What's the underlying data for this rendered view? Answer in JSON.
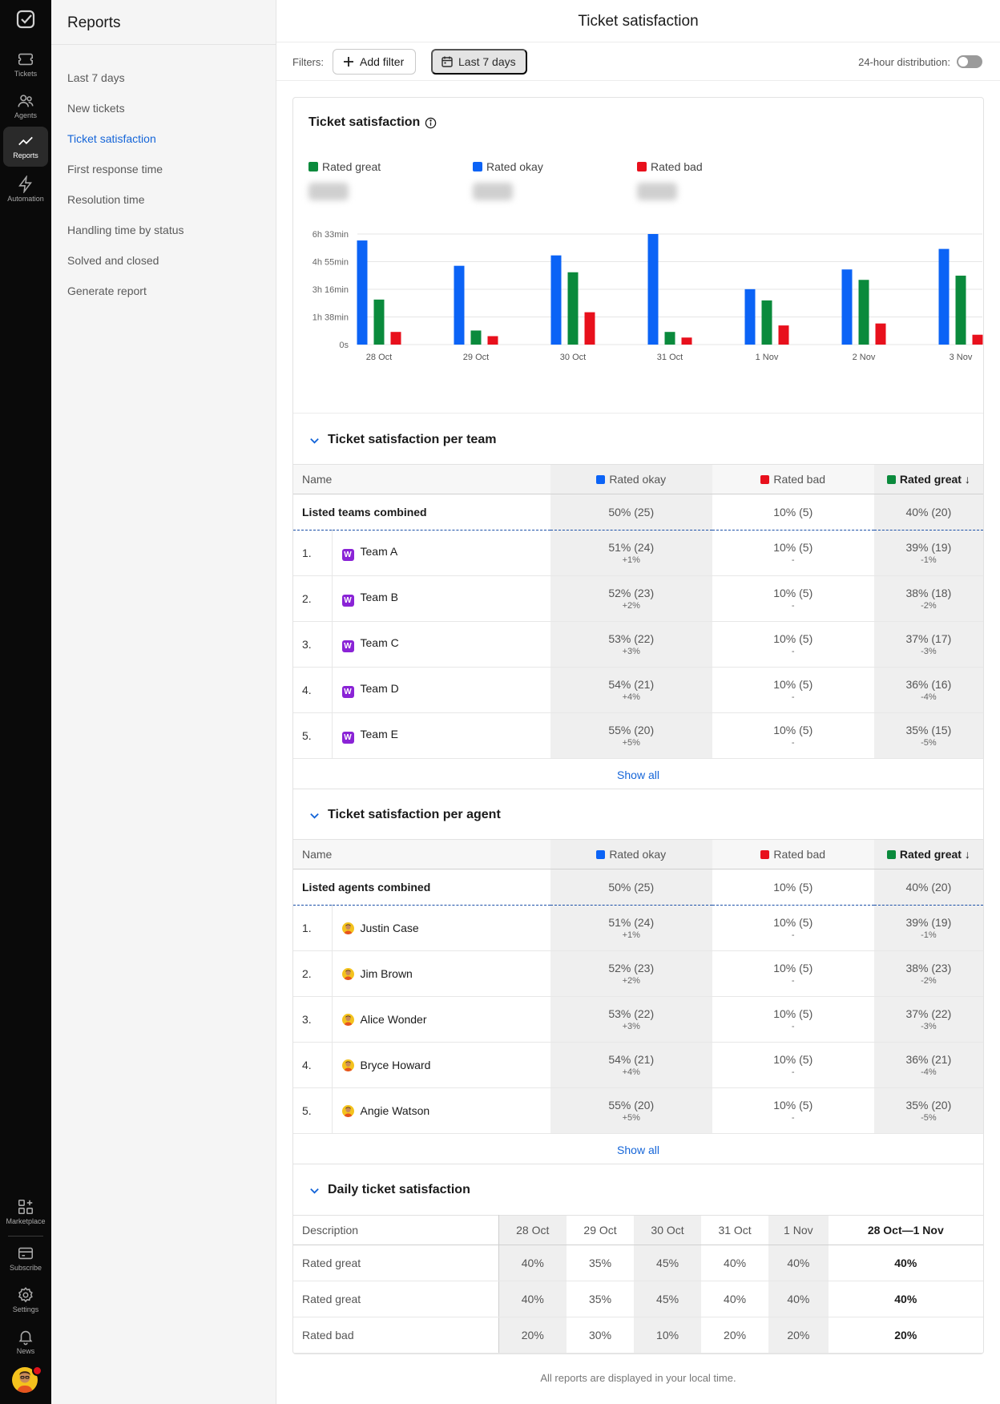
{
  "rail": {
    "items": [
      {
        "label": "Tickets",
        "icon": "ticket-icon"
      },
      {
        "label": "Agents",
        "icon": "agents-icon"
      },
      {
        "label": "Reports",
        "icon": "reports-icon"
      },
      {
        "label": "Automation",
        "icon": "bolt-icon"
      }
    ],
    "bottom_items": [
      {
        "label": "Marketplace",
        "icon": "marketplace-icon"
      },
      {
        "label": "Subscribe",
        "icon": "card-icon"
      },
      {
        "label": "Settings",
        "icon": "gear-icon"
      },
      {
        "label": "News",
        "icon": "bell-icon"
      }
    ]
  },
  "sidebar": {
    "title": "Reports",
    "items": [
      {
        "label": "Last 7 days"
      },
      {
        "label": "New tickets"
      },
      {
        "label": "Ticket satisfaction"
      },
      {
        "label": "First response time"
      },
      {
        "label": "Resolution time"
      },
      {
        "label": "Handling time by status"
      },
      {
        "label": "Solved and closed"
      },
      {
        "label": "Generate report"
      }
    ],
    "active_index": 2
  },
  "header": {
    "title": "Ticket satisfaction"
  },
  "filters": {
    "label": "Filters:",
    "add_filter": "Add filter",
    "date_range": "Last 7 days",
    "distribution_label": "24-hour distribution:",
    "distribution_on": false
  },
  "colors": {
    "great": "#0a8a3c",
    "okay": "#0b63f6",
    "bad": "#e8101c",
    "link": "#1565d8"
  },
  "card": {
    "title": "Ticket satisfaction"
  },
  "legend": [
    {
      "name": "Rated great",
      "color": "#0a8a3c"
    },
    {
      "name": "Rated okay",
      "color": "#0b63f6"
    },
    {
      "name": "Rated bad",
      "color": "#e8101c"
    }
  ],
  "chart_data": {
    "type": "bar",
    "categories": [
      "28 Oct",
      "29 Oct",
      "30 Oct",
      "31 Oct",
      "1 Nov",
      "2 Nov",
      "3 Nov"
    ],
    "y_ticks": [
      "0s",
      "1h 38min",
      "3h 16min",
      "4h 55min",
      "6h 33min"
    ],
    "ylim_minutes": [
      0,
      393
    ],
    "series": [
      {
        "name": "Rated okay",
        "color": "#0b63f6",
        "values_minutes": [
          370,
          280,
          317,
          393,
          197,
          267,
          340
        ]
      },
      {
        "name": "Rated great",
        "color": "#0a8a3c",
        "values_minutes": [
          160,
          50,
          257,
          45,
          157,
          230,
          245
        ]
      },
      {
        "name": "Rated bad",
        "color": "#e8101c",
        "values_minutes": [
          45,
          30,
          115,
          25,
          68,
          75,
          35
        ]
      }
    ],
    "grid": true
  },
  "teams": {
    "title": "Ticket satisfaction per team",
    "columns": {
      "name": "Name",
      "okay": "Rated okay",
      "bad": "Rated bad",
      "great": "Rated great"
    },
    "combined": {
      "label": "Listed teams combined",
      "okay": "50% (25)",
      "bad": "10% (5)",
      "great": "40% (20)"
    },
    "rows": [
      {
        "idx": "1.",
        "badge": "W",
        "name": "Team A",
        "okay": "51% (24)",
        "okay_d": "+1%",
        "bad": "10% (5)",
        "bad_d": "-",
        "great": "39% (19)",
        "great_d": "-1%"
      },
      {
        "idx": "2.",
        "badge": "W",
        "name": "Team B",
        "okay": "52% (23)",
        "okay_d": "+2%",
        "bad": "10% (5)",
        "bad_d": "-",
        "great": "38% (18)",
        "great_d": "-2%"
      },
      {
        "idx": "3.",
        "badge": "W",
        "name": "Team C",
        "okay": "53% (22)",
        "okay_d": "+3%",
        "bad": "10% (5)",
        "bad_d": "-",
        "great": "37% (17)",
        "great_d": "-3%"
      },
      {
        "idx": "4.",
        "badge": "W",
        "name": "Team D",
        "okay": "54% (21)",
        "okay_d": "+4%",
        "bad": "10% (5)",
        "bad_d": "-",
        "great": "36% (16)",
        "great_d": "-4%"
      },
      {
        "idx": "5.",
        "badge": "W",
        "name": "Team E",
        "okay": "55% (20)",
        "okay_d": "+5%",
        "bad": "10% (5)",
        "bad_d": "-",
        "great": "35% (15)",
        "great_d": "-5%"
      }
    ],
    "show_all": "Show all"
  },
  "agents": {
    "title": "Ticket satisfaction per agent",
    "columns": {
      "name": "Name",
      "okay": "Rated okay",
      "bad": "Rated bad",
      "great": "Rated great"
    },
    "combined": {
      "label": "Listed agents combined",
      "okay": "50% (25)",
      "bad": "10% (5)",
      "great": "40% (20)"
    },
    "rows": [
      {
        "idx": "1.",
        "name": "Justin Case",
        "okay": "51% (24)",
        "okay_d": "+1%",
        "bad": "10% (5)",
        "bad_d": "-",
        "great": "39% (19)",
        "great_d": "-1%"
      },
      {
        "idx": "2.",
        "name": "Jim Brown",
        "okay": "52% (23)",
        "okay_d": "+2%",
        "bad": "10% (5)",
        "bad_d": "-",
        "great": "38% (23)",
        "great_d": "-2%"
      },
      {
        "idx": "3.",
        "name": "Alice Wonder",
        "okay": "53% (22)",
        "okay_d": "+3%",
        "bad": "10% (5)",
        "bad_d": "-",
        "great": "37% (22)",
        "great_d": "-3%"
      },
      {
        "idx": "4.",
        "name": "Bryce Howard",
        "okay": "54% (21)",
        "okay_d": "+4%",
        "bad": "10% (5)",
        "bad_d": "-",
        "great": "36% (21)",
        "great_d": "-4%"
      },
      {
        "idx": "5.",
        "name": "Angie Watson",
        "okay": "55% (20)",
        "okay_d": "+5%",
        "bad": "10% (5)",
        "bad_d": "-",
        "great": "35% (20)",
        "great_d": "-5%"
      }
    ],
    "show_all": "Show all"
  },
  "daily": {
    "title": "Daily ticket satisfaction",
    "columns": [
      "Description",
      "28 Oct",
      "29 Oct",
      "30 Oct",
      "31 Oct",
      "1 Nov",
      "28 Oct—1 Nov"
    ],
    "rows": [
      {
        "label": "Rated great",
        "values": [
          "40%",
          "35%",
          "45%",
          "40%",
          "40%"
        ],
        "total": "40%"
      },
      {
        "label": "Rated great",
        "values": [
          "40%",
          "35%",
          "45%",
          "40%",
          "40%"
        ],
        "total": "40%"
      },
      {
        "label": "Rated bad",
        "values": [
          "20%",
          "30%",
          "10%",
          "20%",
          "20%"
        ],
        "total": "20%"
      }
    ]
  },
  "footnote": "All reports are displayed in your local time."
}
